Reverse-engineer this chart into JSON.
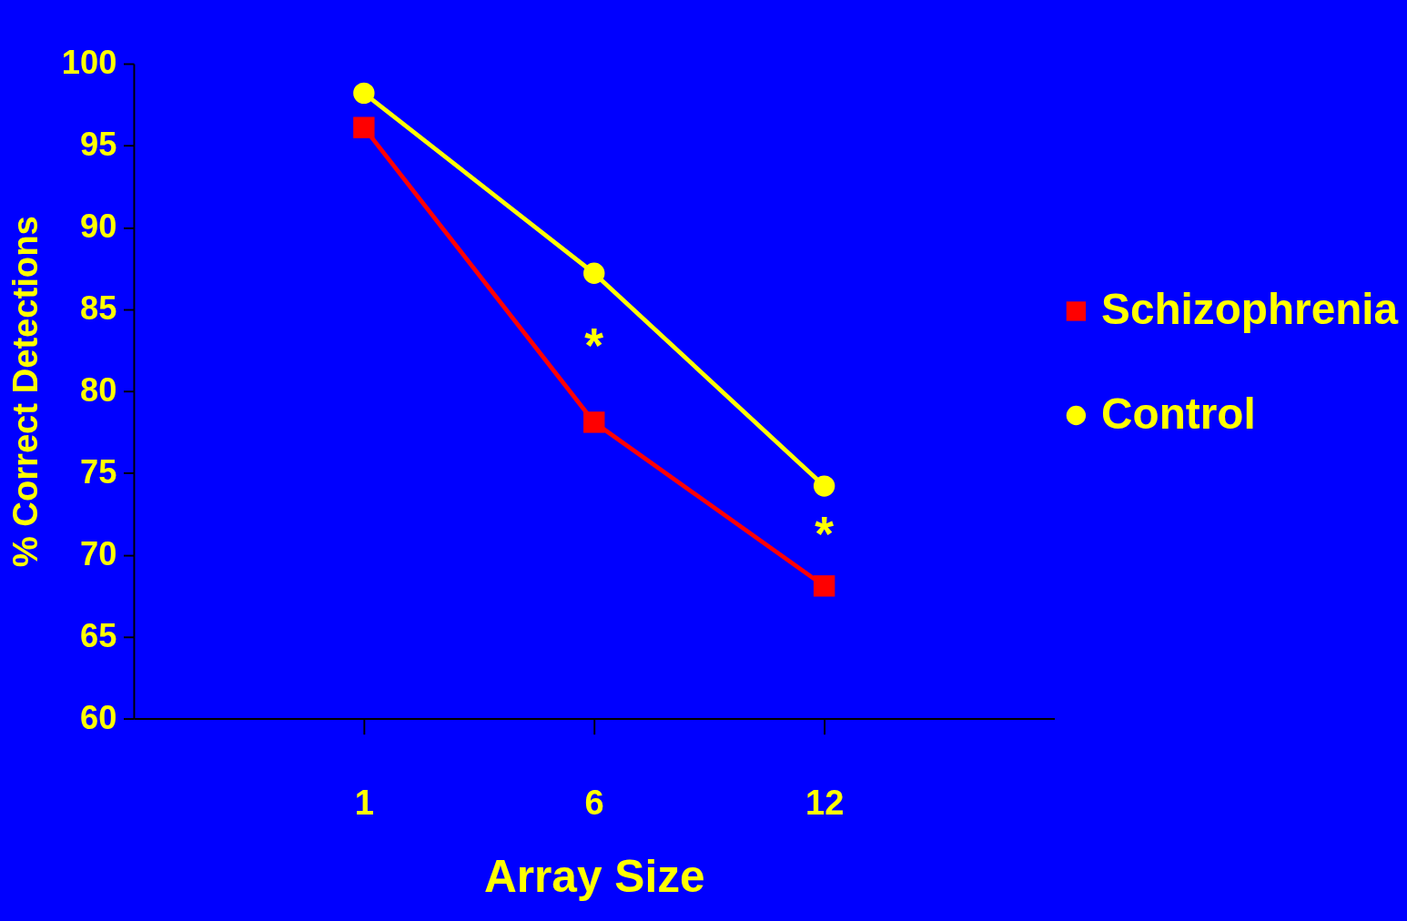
{
  "chart_data": {
    "type": "line",
    "xlabel": "Array Size",
    "ylabel": "% Correct Detections",
    "categories": [
      "1",
      "6",
      "12"
    ],
    "series": [
      {
        "name": "Schizophrenia",
        "color": "#ff0000",
        "marker": "square",
        "values": [
          96.1,
          78.1,
          68.1
        ]
      },
      {
        "name": "Control",
        "color": "#ffff00",
        "marker": "circle",
        "values": [
          98.2,
          87.2,
          74.2
        ]
      }
    ],
    "ylim": [
      60,
      100
    ],
    "yticks": [
      60,
      65,
      70,
      75,
      80,
      85,
      90,
      95,
      100
    ],
    "grid": false,
    "legend": "right",
    "line_style": "solid",
    "annotations": [
      "*",
      "*"
    ]
  }
}
